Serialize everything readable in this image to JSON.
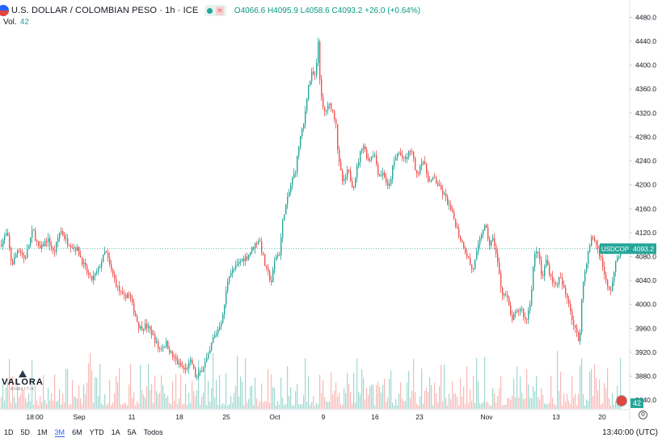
{
  "header": {
    "symbol": "U.S. DOLLAR / COLOMBIAN PESO · 1h · ICE",
    "open_label": "O",
    "open": "4066.6",
    "high_label": "H",
    "high": "4095.9",
    "low_label": "L",
    "low": "4058.6",
    "close_label": "C",
    "close": "4093.2",
    "change": "+26.0 (+0.64%)",
    "wave": "≈"
  },
  "volume_legend": {
    "label": "Vol.",
    "value": "42"
  },
  "price_tag": {
    "symbol": "USDCOP",
    "price": "4093.2"
  },
  "volume_tag": "42",
  "timeframes": [
    "1D",
    "5D",
    "1M",
    "3M",
    "6M",
    "YTD",
    "1A",
    "5A",
    "Todos"
  ],
  "active_timeframe": "3M",
  "clock": "13:40:00 (UTC)",
  "logo": {
    "word": "VALORA",
    "sub": "ANALITIK"
  },
  "colors": {
    "up": "#26a69a",
    "down": "#ef5350",
    "up_vol": "#9fd8cf",
    "down_vol": "#f8b8b6",
    "grid": "#f0f3fa",
    "axis_text": "#131722"
  },
  "chart_data": {
    "type": "candlestick",
    "x_ticks": [
      "18:00",
      "Sep",
      "11",
      "18",
      "25",
      "Oct",
      "9",
      "16",
      "23",
      "Nov",
      "13",
      "20"
    ],
    "y_ticks": [
      3840,
      3880,
      3920,
      3960,
      4000,
      4040,
      4080,
      4120,
      4160,
      4200,
      4240,
      4280,
      4320,
      4360,
      4400,
      4440,
      4480
    ],
    "ylim": [
      3820,
      4490
    ],
    "last_price": 4093.2,
    "grid": false,
    "series": [
      {
        "path": [
          [
            0,
            4100
          ],
          [
            8,
            4120
          ],
          [
            14,
            4065
          ],
          [
            22,
            4095
          ],
          [
            30,
            4075
          ],
          [
            40,
            4125
          ],
          [
            48,
            4090
          ],
          [
            58,
            4110
          ],
          [
            66,
            4085
          ],
          [
            74,
            4125
          ],
          [
            82,
            4105
          ],
          [
            95,
            4092
          ],
          [
            104,
            4062
          ],
          [
            112,
            4040
          ],
          [
            120,
            4055
          ],
          [
            130,
            4090
          ],
          [
            136,
            4060
          ],
          [
            145,
            4028
          ],
          [
            152,
            4010
          ],
          [
            158,
            4020
          ],
          [
            165,
            3990
          ],
          [
            172,
            3960
          ],
          [
            180,
            3965
          ],
          [
            188,
            3950
          ],
          [
            196,
            3925
          ],
          [
            205,
            3935
          ],
          [
            212,
            3915
          ],
          [
            220,
            3900
          ],
          [
            228,
            3890
          ],
          [
            236,
            3905
          ],
          [
            242,
            3875
          ],
          [
            250,
            3895
          ],
          [
            258,
            3915
          ],
          [
            262,
            3940
          ],
          [
            268,
            3955
          ],
          [
            275,
            3980
          ],
          [
            282,
            4050
          ],
          [
            290,
            4060
          ],
          [
            298,
            4075
          ],
          [
            305,
            4080
          ],
          [
            312,
            4095
          ],
          [
            320,
            4110
          ],
          [
            328,
            4060
          ],
          [
            335,
            4038
          ],
          [
            340,
            4080
          ],
          [
            345,
            4085
          ],
          [
            350,
            4150
          ],
          [
            355,
            4175
          ],
          [
            360,
            4205
          ],
          [
            365,
            4225
          ],
          [
            370,
            4275
          ],
          [
            375,
            4300
          ],
          [
            380,
            4360
          ],
          [
            385,
            4385
          ],
          [
            390,
            4380
          ],
          [
            393,
            4440
          ],
          [
            396,
            4350
          ],
          [
            400,
            4320
          ],
          [
            408,
            4335
          ],
          [
            415,
            4305
          ],
          [
            418,
            4240
          ],
          [
            424,
            4200
          ],
          [
            430,
            4225
          ],
          [
            436,
            4195
          ],
          [
            442,
            4235
          ],
          [
            448,
            4270
          ],
          [
            455,
            4240
          ],
          [
            462,
            4255
          ],
          [
            468,
            4215
          ],
          [
            474,
            4220
          ],
          [
            480,
            4190
          ],
          [
            486,
            4235
          ],
          [
            492,
            4255
          ],
          [
            500,
            4240
          ],
          [
            508,
            4260
          ],
          [
            515,
            4215
          ],
          [
            522,
            4245
          ],
          [
            530,
            4205
          ],
          [
            537,
            4210
          ],
          [
            543,
            4195
          ],
          [
            550,
            4180
          ],
          [
            556,
            4160
          ],
          [
            562,
            4140
          ],
          [
            566,
            4120
          ],
          [
            572,
            4100
          ],
          [
            578,
            4080
          ],
          [
            584,
            4055
          ],
          [
            590,
            4090
          ],
          [
            596,
            4125
          ],
          [
            600,
            4130
          ],
          [
            605,
            4100
          ],
          [
            610,
            4110
          ],
          [
            616,
            4060
          ],
          [
            620,
            4020
          ],
          [
            626,
            4015
          ],
          [
            632,
            3975
          ],
          [
            638,
            3985
          ],
          [
            644,
            3995
          ],
          [
            650,
            3970
          ],
          [
            656,
            4010
          ],
          [
            660,
            4080
          ],
          [
            665,
            4090
          ],
          [
            670,
            4040
          ],
          [
            675,
            4075
          ],
          [
            680,
            4050
          ],
          [
            686,
            4030
          ],
          [
            692,
            4045
          ],
          [
            698,
            4020
          ],
          [
            703,
            4005
          ],
          [
            708,
            3970
          ],
          [
            713,
            3950
          ],
          [
            716,
            3935
          ],
          [
            720,
            4030
          ],
          [
            726,
            4080
          ],
          [
            732,
            4115
          ],
          [
            737,
            4100
          ],
          [
            741,
            4085
          ],
          [
            746,
            4060
          ],
          [
            750,
            4030
          ],
          [
            754,
            4020
          ],
          [
            758,
            4045
          ],
          [
            762,
            4075
          ],
          [
            767,
            4093.2
          ]
        ]
      }
    ]
  }
}
